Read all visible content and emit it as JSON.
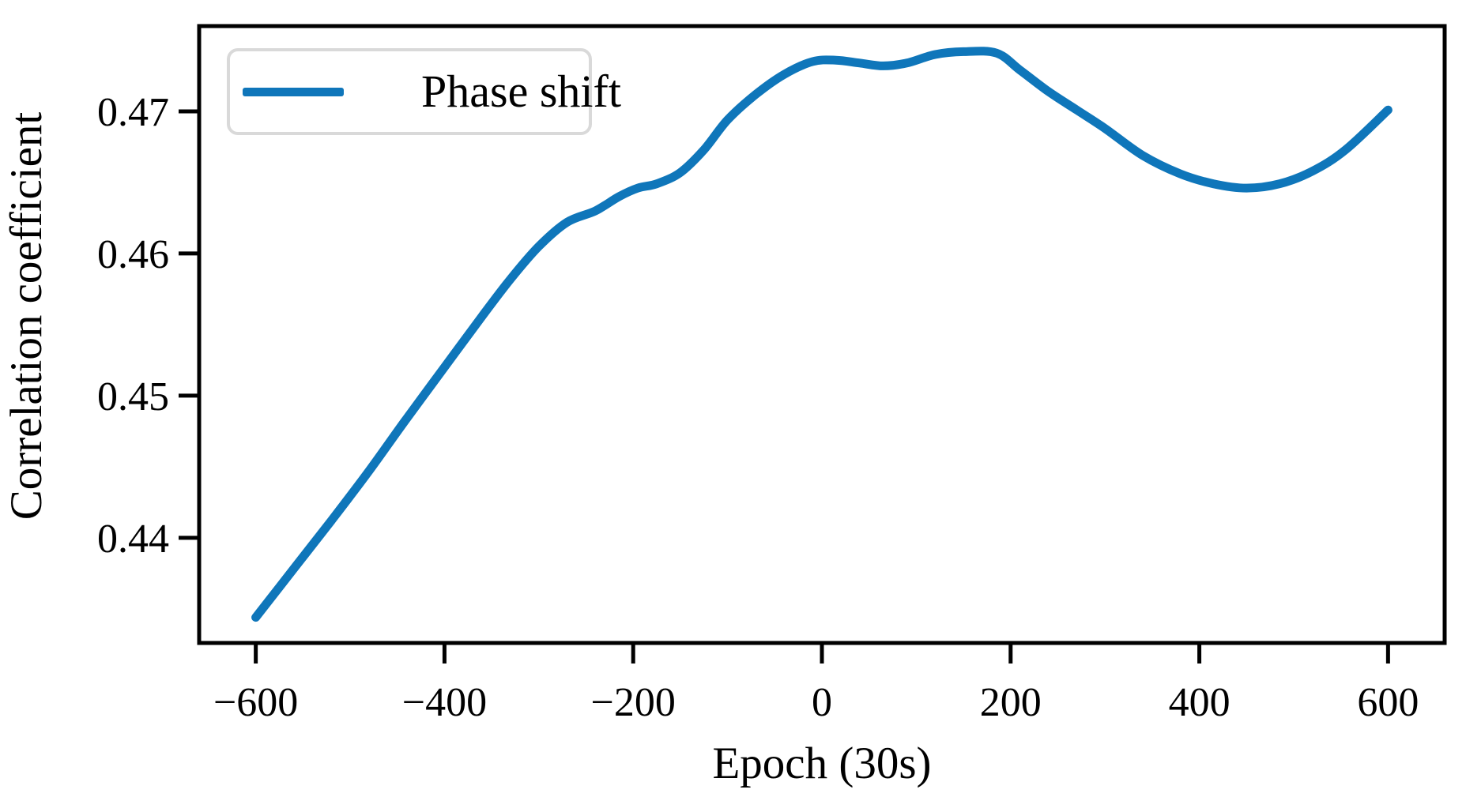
{
  "legend": {
    "label": "Phase shift",
    "position": "upper left"
  },
  "colors": {
    "line": "#0f76ba",
    "axis": "#000000",
    "legend_border": "#d9d9d9",
    "background": "#ffffff"
  },
  "chart_data": {
    "type": "line",
    "title": "",
    "xlabel": "Epoch (30s)",
    "ylabel": "Correlation coefficient",
    "xlim": [
      -660,
      660
    ],
    "ylim": [
      0.4326,
      0.476
    ],
    "grid": false,
    "legend_position": "upper left",
    "x_ticks": [
      -600,
      -400,
      -200,
      0,
      200,
      400,
      600
    ],
    "x_tick_labels": [
      "−600",
      "−400",
      "−200",
      "0",
      "200",
      "400",
      "600"
    ],
    "y_ticks": [
      0.47,
      0.46,
      0.45,
      0.44
    ],
    "y_tick_labels": [
      "0.47",
      "0.46",
      "0.45",
      "0.44"
    ],
    "series": [
      {
        "name": "Phase shift",
        "color": "#0f76ba",
        "x": [
          -600,
          -560,
          -520,
          -480,
          -440,
          -400,
          -360,
          -330,
          -300,
          -270,
          -240,
          -215,
          -195,
          -175,
          -150,
          -125,
          -100,
          -70,
          -40,
          -10,
          15,
          40,
          65,
          90,
          120,
          150,
          185,
          210,
          240,
          270,
          300,
          340,
          380,
          415,
          450,
          485,
          520,
          555,
          600
        ],
        "y": [
          0.4344,
          0.4378,
          0.4412,
          0.4447,
          0.4484,
          0.452,
          0.4556,
          0.4582,
          0.4605,
          0.4622,
          0.463,
          0.464,
          0.4646,
          0.4649,
          0.4657,
          0.4673,
          0.4694,
          0.4712,
          0.4726,
          0.4735,
          0.4736,
          0.4734,
          0.4732,
          0.4734,
          0.474,
          0.4742,
          0.4741,
          0.4729,
          0.4714,
          0.4701,
          0.4688,
          0.4669,
          0.4656,
          0.4649,
          0.4646,
          0.4649,
          0.4658,
          0.4673,
          0.4701
        ]
      }
    ]
  }
}
